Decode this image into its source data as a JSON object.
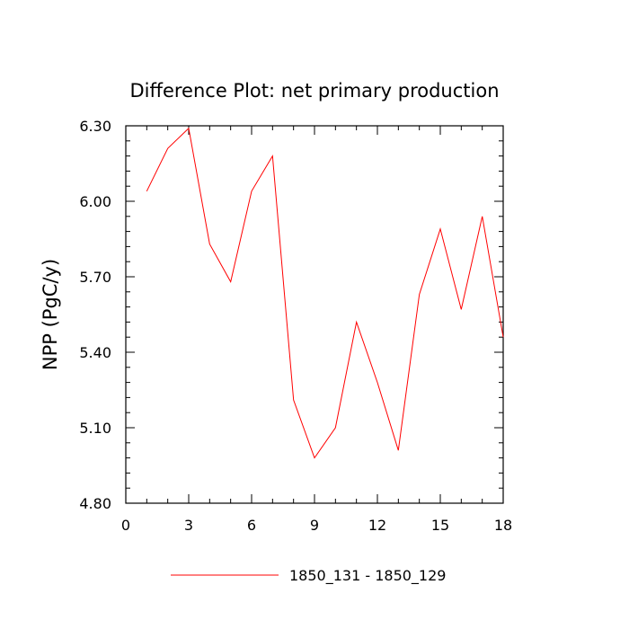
{
  "chart_data": {
    "type": "line",
    "title": "Difference Plot: net primary production",
    "xlabel": "",
    "ylabel": "NPP  (PgC/y)",
    "xlim": [
      0,
      18
    ],
    "ylim": [
      4.8,
      6.3
    ],
    "x_ticks": [
      0,
      3,
      6,
      9,
      12,
      15,
      18
    ],
    "x_tick_labels": [
      "0",
      "3",
      "6",
      "9",
      "12",
      "15",
      "18"
    ],
    "y_ticks": [
      4.8,
      5.1,
      5.4,
      5.7,
      6.0,
      6.3
    ],
    "y_tick_labels": [
      "4.80",
      "5.10",
      "5.40",
      "5.70",
      "6.00",
      "6.30"
    ],
    "grid": false,
    "legend_position": "bottom-center",
    "series": [
      {
        "name": "1850_131 - 1850_129",
        "color": "#ff0000",
        "x": [
          1,
          2,
          3,
          4,
          5,
          6,
          7,
          8,
          9,
          10,
          11,
          12,
          13,
          14,
          15,
          16,
          17,
          18
        ],
        "values": [
          6.04,
          6.21,
          6.29,
          5.83,
          5.68,
          6.04,
          6.18,
          5.21,
          4.98,
          5.1,
          5.52,
          5.28,
          5.01,
          5.63,
          5.89,
          5.57,
          5.94,
          5.46
        ]
      }
    ]
  }
}
